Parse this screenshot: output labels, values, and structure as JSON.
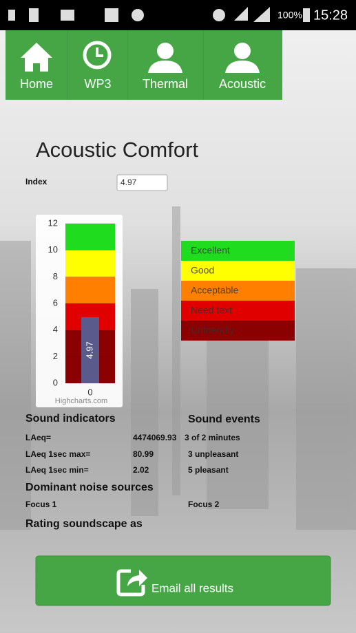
{
  "status_bar": {
    "battery": "100%",
    "time": "15:28"
  },
  "nav": {
    "tabs": [
      "Home",
      "WP3",
      "Thermal",
      "Acoustic"
    ]
  },
  "title": "Acoustic Comfort",
  "index": {
    "label": "Index",
    "value": "4.97"
  },
  "gauge": {
    "type": "bar",
    "categories": [
      "0"
    ],
    "value": 4.97,
    "color": "#5a5a8c",
    "ylim": [
      0,
      12
    ],
    "yticks": [
      0,
      2,
      4,
      6,
      8,
      10,
      12
    ],
    "credit": "Highcharts.com",
    "bands": [
      {
        "name": "Excellent",
        "from": 10,
        "to": 12,
        "color": "#1fdc1f"
      },
      {
        "name": "Good",
        "from": 8,
        "to": 10,
        "color": "#ffff00"
      },
      {
        "name": "Acceptable",
        "from": 6,
        "to": 8,
        "color": "#ff8000"
      },
      {
        "name": "Need text",
        "from": 4,
        "to": 6,
        "color": "#e00000"
      },
      {
        "name": "Unfriendly",
        "from": 0,
        "to": 4,
        "color": "#8b0000"
      }
    ]
  },
  "sound_indicators": {
    "heading": "Sound indicators",
    "rows": [
      {
        "label": "LAeq=",
        "value": "4474069.93"
      },
      {
        "label": "LAeq 1sec max=",
        "value": "80.99"
      },
      {
        "label": "LAeq 1sec min=",
        "value": "2.02"
      }
    ]
  },
  "sound_events": {
    "heading": "Sound events",
    "items": [
      "3 of 2 minutes",
      "3 unpleasant",
      "5 pleasant"
    ]
  },
  "noise_sources": {
    "heading": "Dominant noise sources",
    "items": [
      "Focus 1",
      "Focus 2"
    ]
  },
  "rating": {
    "heading": "Rating soundscape as"
  },
  "button": {
    "label": "Email all results"
  }
}
